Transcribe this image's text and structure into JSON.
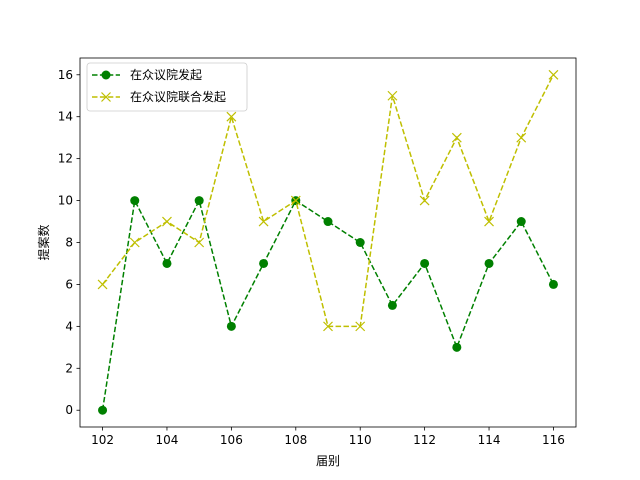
{
  "chart_data": {
    "type": "line",
    "title": "",
    "xlabel": "届别",
    "ylabel": "提案数",
    "x": [
      102,
      103,
      104,
      105,
      106,
      107,
      108,
      109,
      110,
      111,
      112,
      113,
      114,
      115,
      116
    ],
    "xlim": [
      101.3,
      116.7
    ],
    "ylim": [
      -0.8,
      16.8
    ],
    "xticks": [
      102,
      104,
      106,
      108,
      110,
      112,
      114,
      116
    ],
    "yticks": [
      0,
      2,
      4,
      6,
      8,
      10,
      12,
      14,
      16
    ],
    "grid": false,
    "legend_position": "upper-left",
    "series": [
      {
        "name": "在众议院发起",
        "values": [
          0,
          10,
          7,
          10,
          4,
          7,
          10,
          9,
          8,
          5,
          7,
          3,
          7,
          9,
          6
        ],
        "color": "#008000",
        "linestyle": "dashed",
        "marker": "circle"
      },
      {
        "name": "在众议院联合发起",
        "values": [
          6,
          8,
          9,
          8,
          14,
          9,
          10,
          4,
          4,
          15,
          10,
          13,
          9,
          13,
          16
        ],
        "color": "#bfbf00",
        "linestyle": "dashed",
        "marker": "x"
      }
    ]
  }
}
